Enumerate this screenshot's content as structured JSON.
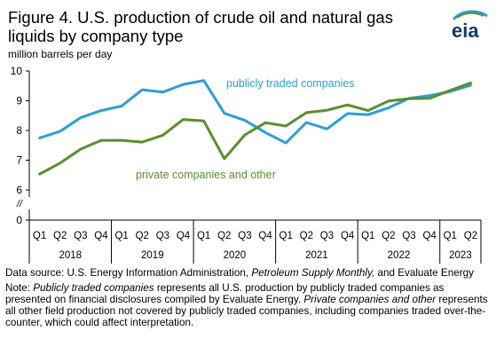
{
  "header": {
    "title": "Figure 4. U.S. production of crude oil and natural  gas liquids by company type",
    "unit": "million barrels per day"
  },
  "logo": {
    "text": "eia",
    "icon": "eia-logo"
  },
  "notes": {
    "source_prefix": "Data source: U.S. Energy Information Administration, ",
    "source_italic": "Petroleum Supply Monthly,",
    "source_suffix": " and Evaluate Energy",
    "note_prefix": "Note: ",
    "note_italic1": "Publicly traded companies",
    "note_mid": " represents  all U.S. production  by publicly traded companies as presented on financial disclosures compiled by Evaluate  Energy. ",
    "note_italic2": "Private companies and other",
    "note_suffix": " represents  all other field production not covered  by publicly traded companies, including companies traded over-the-counter,  which could affect interpretation."
  },
  "colors": {
    "public": "#2A9FD6",
    "private": "#5A8E2E",
    "axis": "#000000"
  },
  "chart_data": {
    "type": "line",
    "ylabel": "million barrels per day",
    "ylim": [
      0,
      10
    ],
    "yticks": [
      0,
      6,
      7,
      8,
      9,
      10
    ],
    "axis_break": "//",
    "categories": [
      "Q1",
      "Q2",
      "Q3",
      "Q4",
      "Q1",
      "Q2",
      "Q3",
      "Q4",
      "Q1",
      "Q2",
      "Q3",
      "Q4",
      "Q1",
      "Q2",
      "Q3",
      "Q4",
      "Q1",
      "Q2",
      "Q3",
      "Q4",
      "Q1",
      "Q2"
    ],
    "years": [
      "2018",
      "2019",
      "2020",
      "2021",
      "2022",
      "2023"
    ],
    "series": [
      {
        "name": "publicly traded companies",
        "color": "#2A9FD6",
        "values": [
          7.75,
          7.97,
          8.43,
          8.67,
          8.82,
          9.37,
          9.29,
          9.55,
          9.68,
          8.58,
          8.34,
          7.93,
          7.58,
          8.27,
          8.05,
          8.57,
          8.53,
          8.76,
          9.08,
          9.17,
          9.31,
          9.52
        ]
      },
      {
        "name": "private  companies and other",
        "color": "#5A8E2E",
        "values": [
          6.53,
          6.9,
          7.37,
          7.67,
          7.67,
          7.61,
          7.84,
          8.37,
          8.32,
          7.05,
          7.85,
          8.26,
          8.15,
          8.6,
          8.68,
          8.86,
          8.67,
          8.99,
          9.07,
          9.08,
          9.35,
          9.6
        ]
      }
    ]
  }
}
